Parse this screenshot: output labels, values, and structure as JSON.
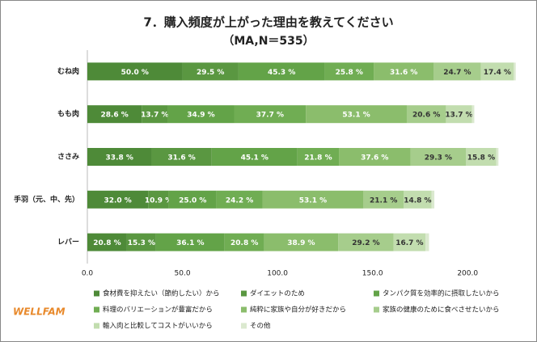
{
  "chart_data": {
    "type": "stacked-bar-horizontal",
    "title": "7．購入頻度が上がった理由を教えてください",
    "subtitle": "（MA,N＝535）",
    "logo": "WELLFAM",
    "categories": [
      "むね肉",
      "もも肉",
      "ささみ",
      "手羽（元、中、先）",
      "レバー"
    ],
    "xlim": [
      0,
      225
    ],
    "xticks": [
      {
        "value": 0,
        "label": "0.0"
      },
      {
        "value": 50,
        "label": "50.0"
      },
      {
        "value": 100,
        "label": "100.0"
      },
      {
        "value": 150,
        "label": "150.0"
      },
      {
        "value": 200,
        "label": "200.0"
      }
    ],
    "series": [
      {
        "name": "食材費を抑えたい（節約したい）から",
        "color": "#4e8a38",
        "values": [
          50.0,
          28.6,
          33.8,
          32.0,
          20.8
        ],
        "value_labels": [
          "50.0 %",
          "28.6 %",
          "33.8 %",
          "32.0 %",
          "20.8 %"
        ]
      },
      {
        "name": "ダイエットのため",
        "color": "#5a9741",
        "values": [
          29.5,
          13.7,
          31.6,
          10.9,
          15.3
        ],
        "value_labels": [
          "29.5 %",
          "13.7 %",
          "31.6 %",
          "10.9 %",
          "15.3 %"
        ]
      },
      {
        "name": "タンパク質を効率的に摂取したいから",
        "color": "#63a348",
        "values": [
          45.3,
          34.9,
          45.1,
          25.0,
          36.1
        ],
        "value_labels": [
          "45.3 %",
          "34.9 %",
          "45.1 %",
          "25.0 %",
          "36.1 %"
        ]
      },
      {
        "name": "料理のバリエーションが豊富だから",
        "color": "#70ad53",
        "values": [
          25.8,
          37.7,
          21.8,
          24.2,
          20.8
        ],
        "value_labels": [
          "25.8 %",
          "37.7 %",
          "21.8 %",
          "24.2 %",
          "20.8 %"
        ]
      },
      {
        "name": "純粋に家族や自分が好きだから",
        "color": "#8bbd6c",
        "values": [
          31.6,
          53.1,
          37.6,
          53.1,
          38.9
        ],
        "value_labels": [
          "31.6 %",
          "53.1 %",
          "37.6 %",
          "53.1 %",
          "38.9 %"
        ]
      },
      {
        "name": "家族の健康のために食べさせたいから",
        "color": "#a6cd8c",
        "values": [
          24.7,
          20.6,
          29.3,
          21.1,
          29.2
        ],
        "value_labels": [
          "24.7 %",
          "20.6 %",
          "29.3 %",
          "21.1 %",
          "29.2 %"
        ]
      },
      {
        "name": "輸入肉と比較してコストがいいから",
        "color": "#c2ddaf",
        "values": [
          17.4,
          13.7,
          15.8,
          14.8,
          16.7
        ],
        "value_labels": [
          "17.4 %",
          "13.7 %",
          "15.8 %",
          "14.8 %",
          "16.7 %"
        ]
      },
      {
        "name": "その他",
        "color": "#dbe9cf",
        "values": [
          1.0,
          1.2,
          1.2,
          1.4,
          1.9
        ]
      }
    ]
  }
}
